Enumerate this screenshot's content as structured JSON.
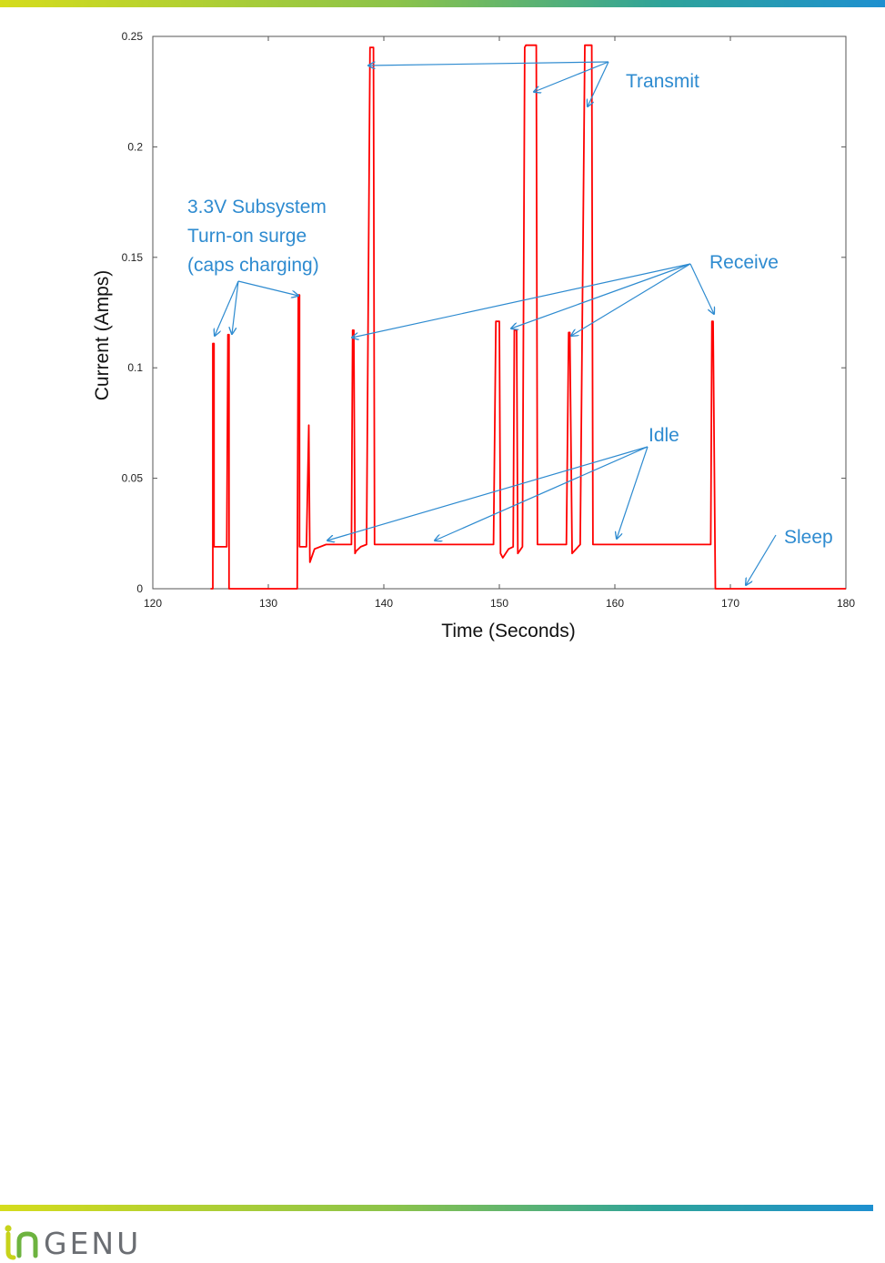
{
  "chart_data": {
    "type": "line",
    "xlabel": "Time (Seconds)",
    "ylabel": "Current (Amps)",
    "xlim": [
      120,
      180
    ],
    "ylim": [
      0,
      0.25
    ],
    "x_ticks": [
      "120",
      "130",
      "140",
      "150",
      "160",
      "170",
      "180"
    ],
    "y_ticks": [
      "0",
      "0.05",
      "0.1",
      "0.15",
      "0.2",
      "0.25"
    ],
    "grid": false,
    "series": [
      {
        "color": "#ff0000",
        "x": [
          125.0,
          125.2,
          125.2,
          125.3,
          125.3,
          126.4,
          126.5,
          126.6,
          126.6,
          132.5,
          132.6,
          132.7,
          132.7,
          133.3,
          133.5,
          133.6,
          134.0,
          135.0,
          137.2,
          137.3,
          137.4,
          137.5,
          137.6,
          138.0,
          138.5,
          138.8,
          138.9,
          139.1,
          139.2,
          140.0,
          149.5,
          149.7,
          149.8,
          150.0,
          150.1,
          150.3,
          150.8,
          151.2,
          151.3,
          151.5,
          151.6,
          152.0,
          152.2,
          152.3,
          153.2,
          153.3,
          153.5,
          155.8,
          156.0,
          156.1,
          156.3,
          157.0,
          157.4,
          157.5,
          158.0,
          158.1,
          168.3,
          168.4,
          168.5,
          168.7,
          180.0
        ],
        "y": [
          0.0,
          0.0,
          0.111,
          0.111,
          0.019,
          0.019,
          0.115,
          0.115,
          0.0,
          0.0,
          0.133,
          0.133,
          0.019,
          0.019,
          0.074,
          0.012,
          0.018,
          0.02,
          0.02,
          0.117,
          0.117,
          0.016,
          0.017,
          0.019,
          0.02,
          0.245,
          0.245,
          0.245,
          0.02,
          0.02,
          0.02,
          0.121,
          0.121,
          0.121,
          0.016,
          0.014,
          0.018,
          0.019,
          0.117,
          0.117,
          0.016,
          0.019,
          0.245,
          0.246,
          0.246,
          0.02,
          0.02,
          0.02,
          0.116,
          0.116,
          0.016,
          0.02,
          0.246,
          0.246,
          0.246,
          0.02,
          0.02,
          0.121,
          0.121,
          0.0,
          0.0
        ]
      }
    ],
    "annotations": [
      {
        "id": "transmit",
        "lines": [
          "Transmit"
        ],
        "color": "#2e8bd0"
      },
      {
        "id": "surge",
        "lines": [
          "3.3V Subsystem",
          "Turn-on surge",
          "(caps charging)"
        ],
        "color": "#2e8bd0"
      },
      {
        "id": "receive",
        "lines": [
          "Receive"
        ],
        "color": "#2e8bd0"
      },
      {
        "id": "idle",
        "lines": [
          "Idle"
        ],
        "color": "#2e8bd0"
      },
      {
        "id": "sleep",
        "lines": [
          "Sleep"
        ],
        "color": "#2e8bd0"
      }
    ]
  },
  "footer": {
    "logo_text": "GENU",
    "logo_colors": {
      "lime": "#c7d31a",
      "green": "#6db33f",
      "gray": "#6b6e73"
    }
  },
  "decor": {
    "bar_colors": [
      "#d5dc1c",
      "#8bc34a",
      "#2ea39a",
      "#1e90d0"
    ]
  }
}
